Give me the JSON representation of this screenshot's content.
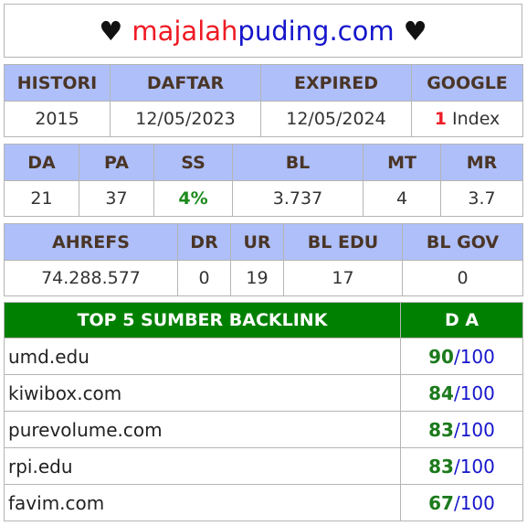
{
  "title": {
    "heart_left": "♥",
    "part1": "majalah",
    "part2": "puding.com",
    "heart_right": "♥"
  },
  "table1": {
    "headers": [
      "HISTORI",
      "DAFTAR",
      "EXPIRED",
      "GOOGLE"
    ],
    "values": {
      "histori": "2015",
      "daftar": "12/05/2023",
      "expired": "12/05/2024",
      "google_count": "1",
      "google_label": "Index"
    }
  },
  "table2": {
    "headers": [
      "DA",
      "PA",
      "SS",
      "BL",
      "MT",
      "MR"
    ],
    "values": [
      "21",
      "37",
      "4%",
      "3.737",
      "4",
      "3.7"
    ]
  },
  "table3": {
    "headers": [
      "AHREFS",
      "DR",
      "UR",
      "BL EDU",
      "BL GOV"
    ],
    "values": [
      "74.288.577",
      "0",
      "19",
      "17",
      "0"
    ]
  },
  "backlinks": {
    "header_source": "TOP 5 SUMBER BACKLINK",
    "header_da": "D A",
    "items": [
      {
        "site": "umd.edu",
        "score": "90",
        "max": "100"
      },
      {
        "site": "kiwibox.com",
        "score": "84",
        "max": "100"
      },
      {
        "site": "purevolume.com",
        "score": "83",
        "max": "100"
      },
      {
        "site": "rpi.edu",
        "score": "83",
        "max": "100"
      },
      {
        "site": "favim.com",
        "score": "67",
        "max": "100"
      }
    ],
    "separator": "/"
  },
  "colors": {
    "header_bg": "#aebff9",
    "backlink_header_bg": "#008000",
    "accent_red": "#ee1b24",
    "accent_blue": "#1515cc",
    "accent_green": "#1c8a1c"
  }
}
